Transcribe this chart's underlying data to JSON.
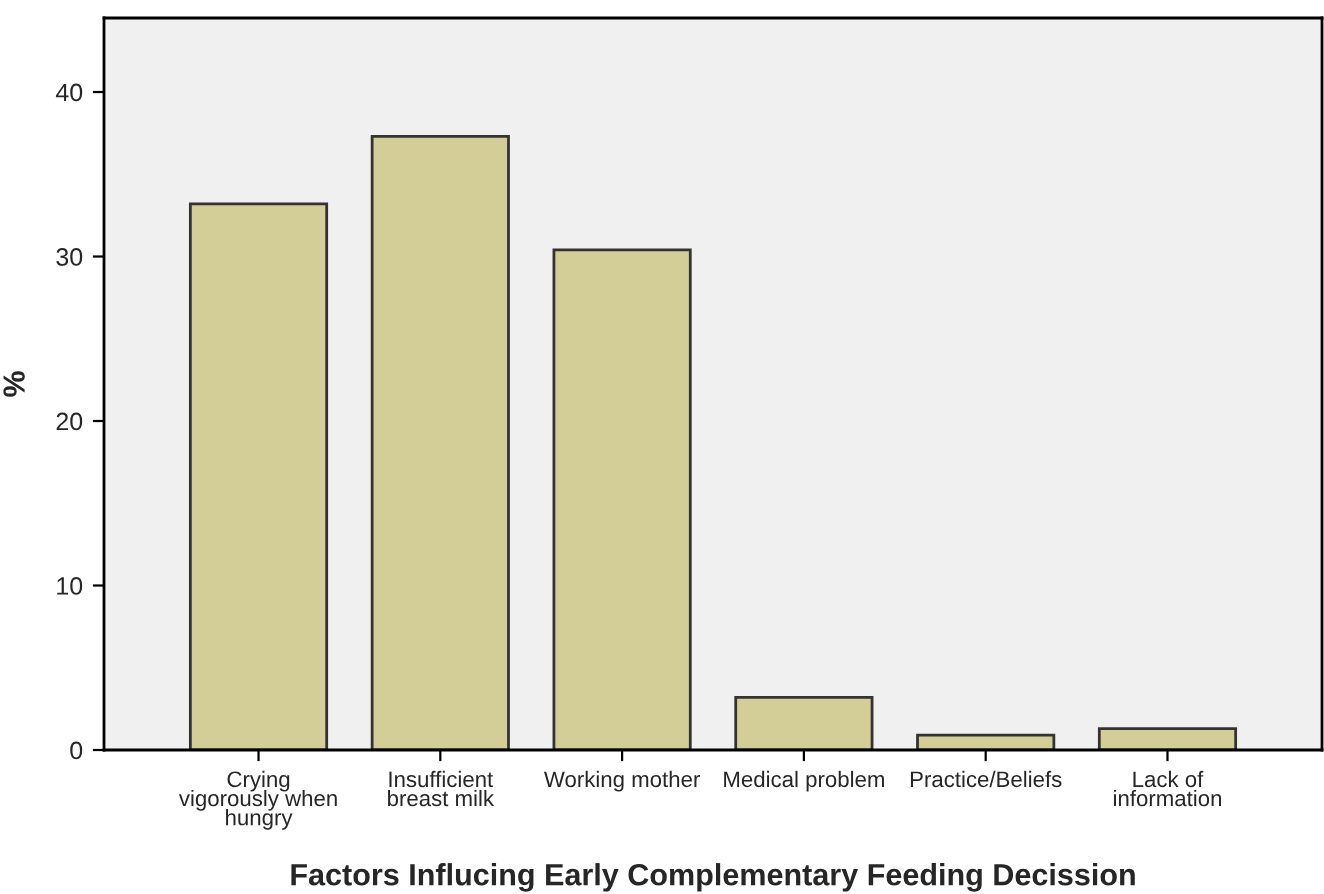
{
  "chart_data": {
    "type": "bar",
    "xlabel": "Factors Influcing Early Complementary Feeding Decission",
    "ylabel": "%",
    "categories": [
      "Crying\nvigorously when\nhungry",
      "Insufficient\nbreast milk",
      "Working mother",
      "Medical problem",
      "Practice/Beliefs",
      "Lack of\ninformation"
    ],
    "values": [
      33.2,
      37.3,
      30.4,
      3.2,
      0.9,
      1.3
    ],
    "color": "#d3ce97",
    "ylim": [
      0,
      44.5
    ],
    "yticks": [
      0,
      10,
      20,
      30,
      40
    ],
    "grid": false
  }
}
